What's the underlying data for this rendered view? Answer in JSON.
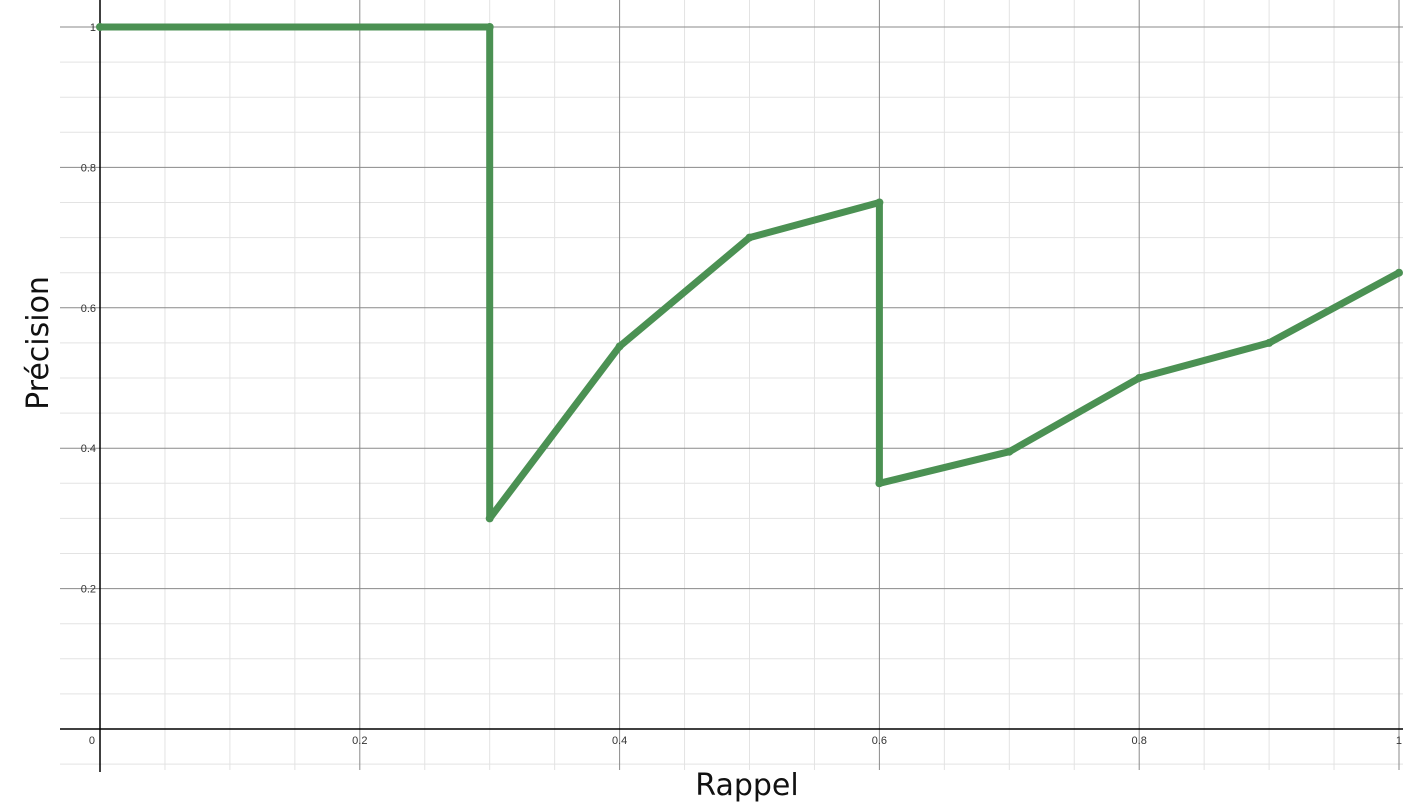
{
  "chart_data": {
    "type": "line",
    "title": "",
    "xlabel": "Rappel",
    "ylabel": "Précision",
    "xlim": [
      0,
      1
    ],
    "ylim": [
      0,
      1
    ],
    "grid": true,
    "x_ticks": [
      "0",
      "0.2",
      "0.4",
      "0.6",
      "0.8",
      "1"
    ],
    "y_ticks": [
      "0.2",
      "0.4",
      "0.6",
      "0.8",
      "1"
    ],
    "series": [
      {
        "color": "#4b9153",
        "x": [
          0,
          0.3,
          0.3,
          0.4,
          0.5,
          0.6,
          0.6,
          0.7,
          0.8,
          0.9,
          1.0
        ],
        "y": [
          1.0,
          1.0,
          0.3,
          0.545,
          0.7,
          0.75,
          0.35,
          0.395,
          0.5,
          0.55,
          0.65
        ]
      }
    ]
  }
}
